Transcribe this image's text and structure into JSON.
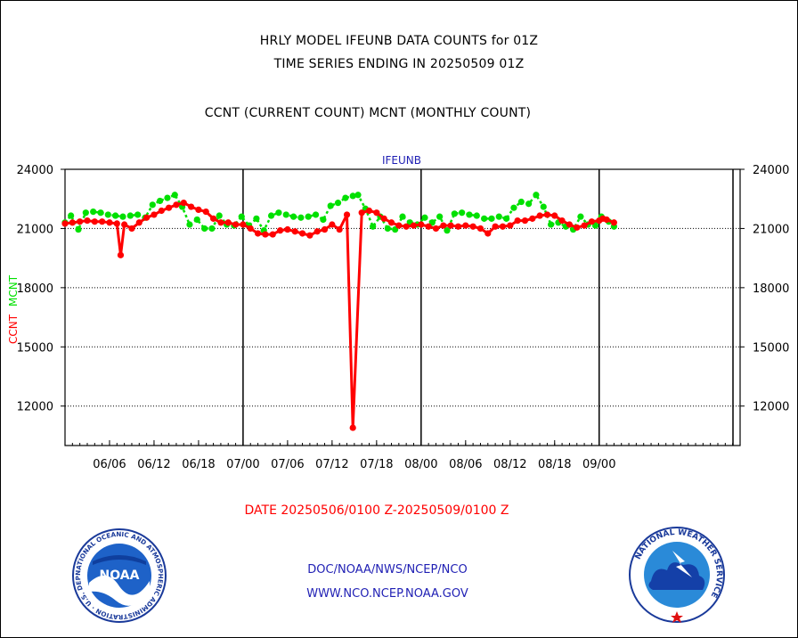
{
  "header": {
    "title_line1": "HRLY MODEL IFEUNB DATA COUNTS for 01Z",
    "title_line2": "TIME SERIES ENDING IN 20250509 01Z",
    "subtitle": "CCNT (CURRENT COUNT) MCNT (MONTHLY COUNT)"
  },
  "footer": {
    "date_range": "DATE 20250506/0100 Z-20250509/0100 Z",
    "line1": "DOC/NOAA/NWS/NCEP/NCO",
    "line2": "WWW.NCO.NCEP.NOAA.GOV"
  },
  "logos": {
    "noaa_text": "NOAA",
    "noaa_ring_text": "NATIONAL OCEANIC AND ATMOSPHERIC ADMINISTRATION · U.S. DEPARTMENT OF COMMERCE",
    "nws_ring_text": "NATIONAL WEATHER SERVICE"
  },
  "colors": {
    "ccnt": "#ff0000",
    "mcnt": "#00e000",
    "axis": "#000000",
    "plot_label": "#1f1fb4"
  },
  "chart_data": {
    "type": "line",
    "plot_label": "IFEUNB",
    "ylabel_ccnt": "CCNT",
    "ylabel_mcnt": "MCNT",
    "ylim": [
      10000,
      24000
    ],
    "xlim": [
      0,
      91
    ],
    "yticks": [
      12000,
      15000,
      18000,
      21000,
      24000
    ],
    "y_tick_labels": [
      "12000",
      "15000",
      "18000",
      "21000",
      "24000"
    ],
    "x_tick_labels": [
      {
        "x": 6,
        "label": "06/06"
      },
      {
        "x": 12,
        "label": "06/12"
      },
      {
        "x": 18,
        "label": "06/18"
      },
      {
        "x": 24,
        "label": "07/00"
      },
      {
        "x": 30,
        "label": "07/06"
      },
      {
        "x": 36,
        "label": "07/12"
      },
      {
        "x": 42,
        "label": "07/18"
      },
      {
        "x": 48,
        "label": "08/00"
      },
      {
        "x": 54,
        "label": "08/06"
      },
      {
        "x": 60,
        "label": "08/12"
      },
      {
        "x": 66,
        "label": "08/18"
      },
      {
        "x": 72,
        "label": "09/00"
      }
    ],
    "major_vlines": [
      24,
      48,
      72
    ],
    "grid": "horizontal dotted",
    "series": [
      {
        "name": "CCNT",
        "color": "#ff0000",
        "values": [
          [
            0,
            21250
          ],
          [
            1,
            21300
          ],
          [
            2,
            21350
          ],
          [
            3,
            21400
          ],
          [
            4,
            21350
          ],
          [
            5,
            21350
          ],
          [
            6,
            21300
          ],
          [
            7,
            21250
          ],
          [
            7.5,
            19650
          ],
          [
            8,
            21200
          ],
          [
            9,
            21000
          ],
          [
            10,
            21300
          ],
          [
            11,
            21550
          ],
          [
            12,
            21700
          ],
          [
            13,
            21900
          ],
          [
            14,
            22050
          ],
          [
            15,
            22200
          ],
          [
            16,
            22300
          ],
          [
            17,
            22100
          ],
          [
            18,
            21950
          ],
          [
            19,
            21850
          ],
          [
            20,
            21500
          ],
          [
            21,
            21300
          ],
          [
            22,
            21300
          ],
          [
            23,
            21200
          ],
          [
            24,
            21200
          ],
          [
            25,
            21000
          ],
          [
            26,
            20750
          ],
          [
            27,
            20700
          ],
          [
            28,
            20700
          ],
          [
            29,
            20900
          ],
          [
            30,
            20950
          ],
          [
            31,
            20850
          ],
          [
            32,
            20750
          ],
          [
            33,
            20650
          ],
          [
            34,
            20850
          ],
          [
            35,
            20950
          ],
          [
            36,
            21200
          ],
          [
            37,
            20950
          ],
          [
            38,
            21700
          ],
          [
            38.8,
            10900
          ],
          [
            40,
            21800
          ],
          [
            41,
            21900
          ],
          [
            42,
            21800
          ],
          [
            43,
            21500
          ],
          [
            44,
            21300
          ],
          [
            45,
            21150
          ],
          [
            46,
            21100
          ],
          [
            47,
            21150
          ],
          [
            48,
            21200
          ],
          [
            49,
            21100
          ],
          [
            50,
            21000
          ],
          [
            51,
            21150
          ],
          [
            52,
            21150
          ],
          [
            53,
            21100
          ],
          [
            54,
            21150
          ],
          [
            55,
            21100
          ],
          [
            56,
            21000
          ],
          [
            57,
            20750
          ],
          [
            58,
            21100
          ],
          [
            59,
            21100
          ],
          [
            60,
            21150
          ],
          [
            61,
            21400
          ],
          [
            62,
            21400
          ],
          [
            63,
            21500
          ],
          [
            64,
            21650
          ],
          [
            65,
            21700
          ],
          [
            66,
            21650
          ],
          [
            67,
            21400
          ],
          [
            68,
            21200
          ],
          [
            69,
            21050
          ],
          [
            70,
            21150
          ],
          [
            71,
            21350
          ],
          [
            72,
            21400
          ],
          [
            72.5,
            21500
          ],
          [
            73,
            21450
          ],
          [
            74,
            21300
          ]
        ]
      },
      {
        "name": "MCNT",
        "color": "#00e000",
        "values": [
          [
            0,
            21300
          ],
          [
            0.8,
            21650
          ],
          [
            1.8,
            20950
          ],
          [
            2.8,
            21800
          ],
          [
            3.8,
            21850
          ],
          [
            4.8,
            21800
          ],
          [
            5.8,
            21700
          ],
          [
            6.8,
            21650
          ],
          [
            7.8,
            21600
          ],
          [
            8.8,
            21650
          ],
          [
            9.8,
            21700
          ],
          [
            10.8,
            21550
          ],
          [
            11.8,
            22200
          ],
          [
            12.8,
            22400
          ],
          [
            13.8,
            22550
          ],
          [
            14.8,
            22700
          ],
          [
            15.8,
            22100
          ],
          [
            16.8,
            21200
          ],
          [
            17.8,
            21450
          ],
          [
            18.8,
            21000
          ],
          [
            19.8,
            21000
          ],
          [
            20.8,
            21650
          ],
          [
            21.8,
            21200
          ],
          [
            22.8,
            21150
          ],
          [
            23.8,
            21600
          ],
          [
            24.8,
            21150
          ],
          [
            25.8,
            21500
          ],
          [
            26.8,
            20900
          ],
          [
            27.8,
            21650
          ],
          [
            28.8,
            21800
          ],
          [
            29.8,
            21700
          ],
          [
            30.8,
            21600
          ],
          [
            31.8,
            21550
          ],
          [
            32.8,
            21600
          ],
          [
            33.8,
            21700
          ],
          [
            34.8,
            21450
          ],
          [
            35.8,
            22150
          ],
          [
            36.8,
            22300
          ],
          [
            37.8,
            22550
          ],
          [
            38.8,
            22650
          ],
          [
            39.5,
            22700
          ],
          [
            40.5,
            22000
          ],
          [
            41.5,
            21100
          ],
          [
            42.5,
            21600
          ],
          [
            43.5,
            21000
          ],
          [
            44.5,
            20950
          ],
          [
            45.5,
            21600
          ],
          [
            46.5,
            21300
          ],
          [
            47.5,
            21200
          ],
          [
            48.5,
            21550
          ],
          [
            49.5,
            21300
          ],
          [
            50.5,
            21600
          ],
          [
            51.5,
            20900
          ],
          [
            52.5,
            21750
          ],
          [
            53.5,
            21800
          ],
          [
            54.5,
            21700
          ],
          [
            55.5,
            21650
          ],
          [
            56.5,
            21500
          ],
          [
            57.5,
            21500
          ],
          [
            58.5,
            21600
          ],
          [
            59.5,
            21500
          ],
          [
            60.5,
            22050
          ],
          [
            61.5,
            22350
          ],
          [
            62.5,
            22250
          ],
          [
            63.5,
            22700
          ],
          [
            64.5,
            22100
          ],
          [
            65.5,
            21200
          ],
          [
            66.5,
            21300
          ],
          [
            67.5,
            21100
          ],
          [
            68.5,
            20950
          ],
          [
            69.5,
            21600
          ],
          [
            70.5,
            21200
          ],
          [
            71.5,
            21150
          ],
          [
            72.3,
            21600
          ],
          [
            73.3,
            21350
          ],
          [
            74,
            21100
          ]
        ]
      }
    ]
  }
}
